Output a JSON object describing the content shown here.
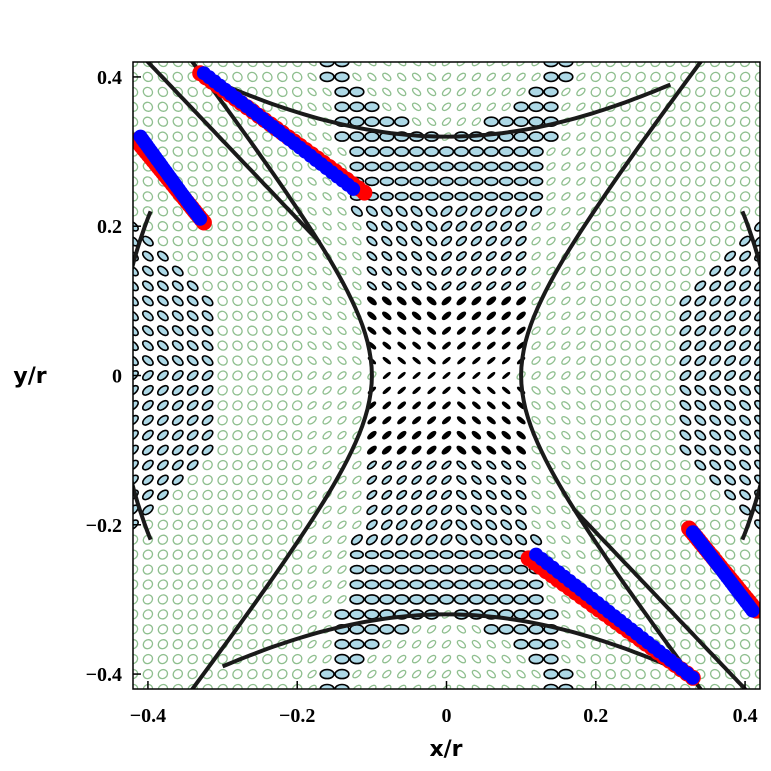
{
  "chart_data": {
    "type": "scatter",
    "title": "",
    "xlabel": "x/r",
    "ylabel": "y/r",
    "xlim": [
      -0.42,
      0.42
    ],
    "ylim": [
      -0.42,
      0.42
    ],
    "x_ticks": [
      -0.4,
      -0.2,
      0,
      0.2,
      0.4
    ],
    "y_ticks": [
      -0.4,
      -0.2,
      0,
      0.2,
      0.4
    ],
    "x_tick_labels": [
      "−0.4",
      "−0.2",
      "0",
      "0.2",
      "0.4"
    ],
    "y_tick_labels": [
      "−0.4",
      "−0.2",
      "0",
      "0.2",
      "0.4"
    ],
    "grid": false,
    "legend": "none",
    "background_field": {
      "description_shown": "ellipse glyph field",
      "grid_step": 0.02,
      "colors": {
        "stable_outline": "#8fbf8f",
        "unstable_fill": "#add8e6",
        "unstable_outline": "#000000"
      }
    },
    "boundary_curves": {
      "color": "#1a1a1a",
      "vertices": [
        [
          0,
          0.32
        ],
        [
          0,
          -0.32
        ],
        [
          0.1,
          0
        ],
        [
          -0.1,
          0
        ]
      ],
      "hyperbola_half_axes": [
        0.32,
        0.1
      ],
      "pair_offset": 0.16
    },
    "series": [
      {
        "color": "#ff0000",
        "segments": [
          {
            "start": [
              -0.33,
              0.405
            ],
            "end": [
              -0.11,
              0.245
            ]
          },
          {
            "start": [
              -0.415,
              0.315
            ],
            "end": [
              -0.325,
              0.205
            ]
          },
          {
            "start": [
              0.11,
              -0.245
            ],
            "end": [
              0.33,
              -0.405
            ]
          },
          {
            "start": [
              0.325,
              -0.205
            ],
            "end": [
              0.415,
              -0.315
            ]
          }
        ]
      },
      {
        "color": "#0000ff",
        "segments": [
          {
            "start": [
              -0.325,
              0.405
            ],
            "end": [
              -0.125,
              0.25
            ]
          },
          {
            "start": [
              -0.41,
              0.32
            ],
            "end": [
              -0.33,
              0.21
            ]
          },
          {
            "start": [
              0.12,
              -0.24
            ],
            "end": [
              0.33,
              -0.405
            ]
          },
          {
            "start": [
              0.33,
              -0.21
            ],
            "end": [
              0.41,
              -0.315
            ]
          }
        ]
      }
    ]
  }
}
